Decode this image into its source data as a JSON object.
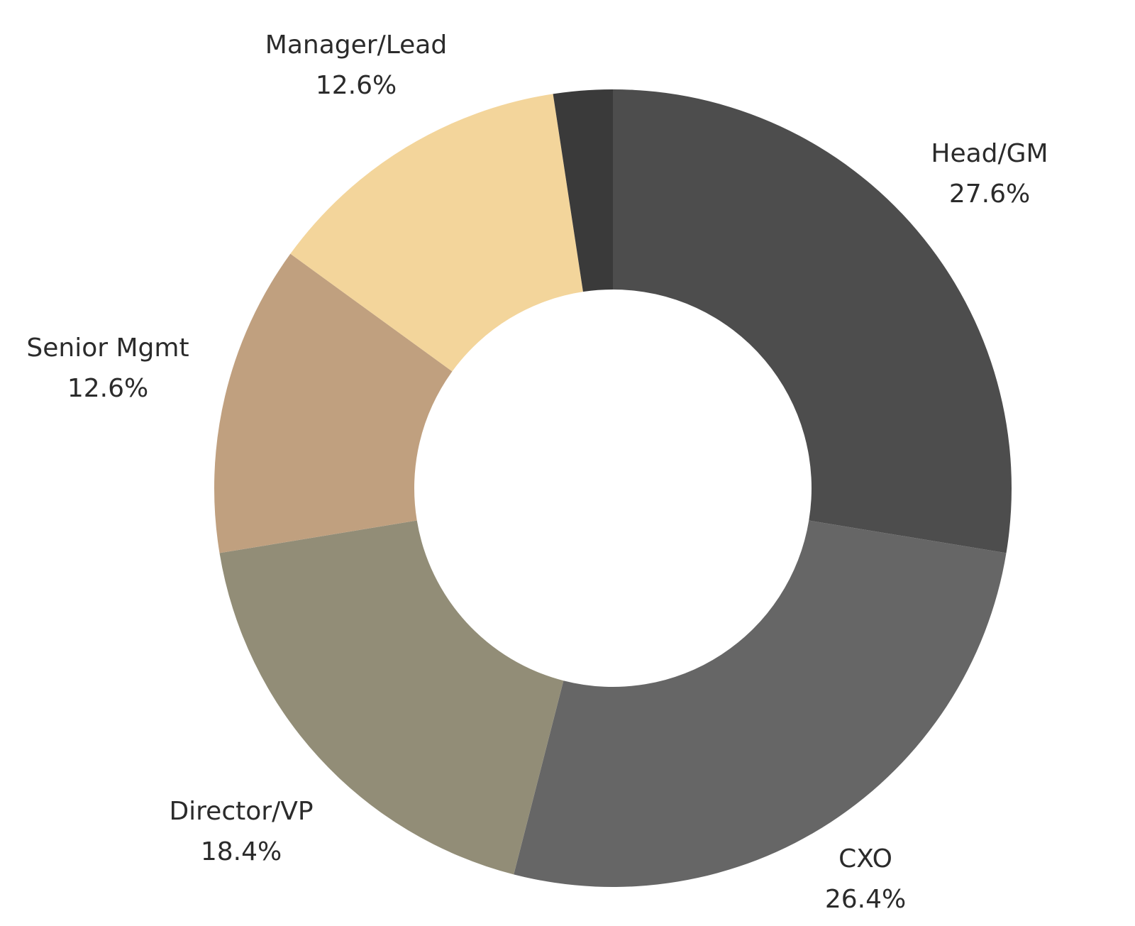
{
  "chart_data": {
    "type": "pie",
    "style": "donut",
    "start_angle": "12 o'clock",
    "direction": "clockwise",
    "legend": "none (direct labels)",
    "slices": [
      {
        "label": "Head/GM",
        "value": 27.6,
        "display": "27.6%",
        "color": "#4d4d4d"
      },
      {
        "label": "CXO",
        "value": 26.4,
        "display": "26.4%",
        "color": "#666666"
      },
      {
        "label": "Director/VP",
        "value": 18.4,
        "display": "18.4%",
        "color": "#928d77"
      },
      {
        "label": "Senior Mgmt",
        "value": 12.6,
        "display": "12.6%",
        "color": "#c0a07f"
      },
      {
        "label": "Manager/Lead",
        "value": 12.6,
        "display": "12.6%",
        "color": "#f3d59b"
      },
      {
        "label": "",
        "value": 2.4,
        "display": "",
        "color": "#3a3a3a"
      }
    ]
  }
}
